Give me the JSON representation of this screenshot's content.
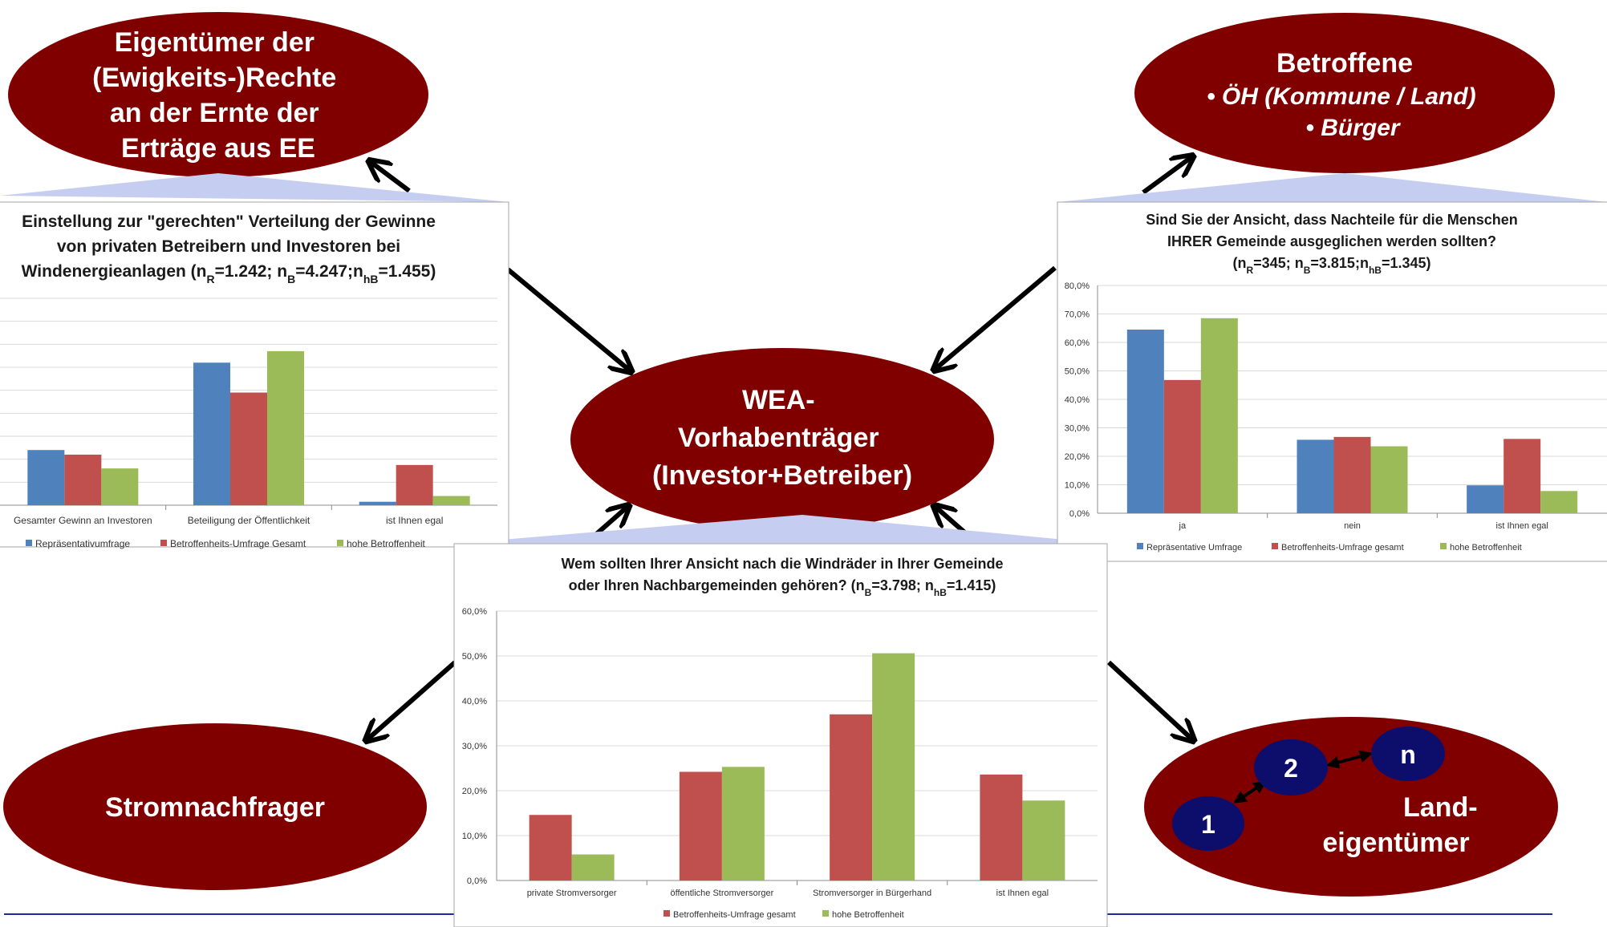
{
  "colors": {
    "ellipse": "#800000",
    "node": "#0d0d6b",
    "blue": "#4f81bd",
    "red": "#c0504d",
    "green": "#9bbb59",
    "callout": "#c5cef0",
    "rule": "#1f2a99"
  },
  "ellipses": {
    "top_left": [
      "Eigentümer der",
      "(Ewigkeits-)Rechte",
      "an der Ernte der",
      "Erträge aus EE"
    ],
    "top_right": {
      "title": "Betroffene",
      "items": [
        "• ÖH (Kommune / Land)",
        "• Bürger"
      ]
    },
    "center": [
      "WEA-",
      "Vorhabenträger",
      "(Investor+Betreiber)"
    ],
    "bottom_left": [
      "Stromnachfrager"
    ],
    "bottom_right": [
      "Land-",
      "eigentümer"
    ]
  },
  "nodes": {
    "n1": "1",
    "n2": "2",
    "nn": "n"
  },
  "chart_data": [
    {
      "type": "bar",
      "title_lines": [
        [
          {
            "t": "Einstellung zur \"gerechten\" Verteilung der Gewinne"
          }
        ],
        [
          {
            "t": "von privaten Betreibern und Investoren bei"
          }
        ],
        [
          {
            "t": "Windenergieanlagen (n"
          },
          {
            "t": "R",
            "sub": true
          },
          {
            "t": "=1.242; n"
          },
          {
            "t": "B",
            "sub": true
          },
          {
            "t": "=4.247;n"
          },
          {
            "t": "hB",
            "sub": true
          },
          {
            "t": "=1.455)"
          }
        ]
      ],
      "categories": [
        "Gesamter Gewinn an Investoren",
        "Beteiligung der Öffentlichkeit",
        "ist Ihnen egal"
      ],
      "ylim": [
        0,
        90
      ],
      "series": [
        {
          "name": "Repräsentativumfrage",
          "color": "#4f81bd",
          "values": [
            24,
            62,
            1.5
          ]
        },
        {
          "name": "Betroffenheits-Umfrage Gesamt",
          "color": "#c0504d",
          "values": [
            22,
            49,
            17.5
          ]
        },
        {
          "name": "hohe Betroffenheit",
          "color": "#9bbb59",
          "values": [
            16,
            67,
            4
          ]
        }
      ]
    },
    {
      "type": "bar",
      "title_lines": [
        [
          {
            "t": "Sind Sie der Ansicht, dass Nachteile für die Menschen"
          }
        ],
        [
          {
            "t": "IHRER Gemeinde ausgeglichen werden sollten?"
          }
        ],
        [
          {
            "t": "(n"
          },
          {
            "t": "R",
            "sub": true
          },
          {
            "t": "=345; n"
          },
          {
            "t": "B",
            "sub": true
          },
          {
            "t": "=3.815;n"
          },
          {
            "t": "hB",
            "sub": true
          },
          {
            "t": "=1.345)"
          }
        ]
      ],
      "categories": [
        "ja",
        "nein",
        "ist Ihnen egal"
      ],
      "ylim": [
        0,
        80
      ],
      "yticks": [
        "0,0%",
        "10,0%",
        "20,0%",
        "30,0%",
        "40,0%",
        "50,0%",
        "60,0%",
        "70,0%",
        "80,0%"
      ],
      "series": [
        {
          "name": "Repräsentative Umfrage",
          "color": "#4f81bd",
          "values": [
            64.5,
            25.8,
            9.8
          ]
        },
        {
          "name": "Betroffenheits-Umfrage gesamt",
          "color": "#c0504d",
          "values": [
            46.8,
            26.8,
            26.1
          ]
        },
        {
          "name": "hohe Betroffenheit",
          "color": "#9bbb59",
          "values": [
            68.5,
            23.5,
            7.8
          ]
        }
      ]
    },
    {
      "type": "bar",
      "title_lines": [
        [
          {
            "t": "Wem sollten Ihrer Ansicht nach die Windräder in Ihrer Gemeinde"
          }
        ],
        [
          {
            "t": "oder Ihren Nachbargemeinden gehören? (n"
          },
          {
            "t": "B",
            "sub": true
          },
          {
            "t": "=3.798; n"
          },
          {
            "t": "hB",
            "sub": true
          },
          {
            "t": "=1.415)"
          }
        ]
      ],
      "categories": [
        "private Stromversorger",
        "öffentliche Stromversorger",
        "Stromversorger in Bürgerhand",
        "ist Ihnen egal"
      ],
      "ylim": [
        0,
        60
      ],
      "yticks": [
        "0,0%",
        "10,0%",
        "20,0%",
        "30,0%",
        "40,0%",
        "50,0%",
        "60,0%"
      ],
      "series": [
        {
          "name": "Betroffenheits-Umfrage gesamt",
          "color": "#c0504d",
          "values": [
            14.6,
            24.2,
            37.0,
            23.6
          ]
        },
        {
          "name": "hohe Betroffenheit",
          "color": "#9bbb59",
          "values": [
            5.8,
            25.3,
            50.6,
            17.8
          ]
        }
      ]
    }
  ]
}
